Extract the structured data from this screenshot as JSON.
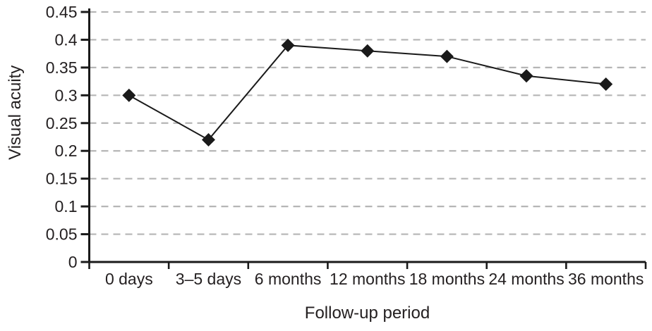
{
  "figure": {
    "background": "#ffffff"
  },
  "chart_data": {
    "type": "line",
    "title": "",
    "xlabel": "Follow-up period",
    "ylabel": "Visual acuity",
    "categories": [
      "0 days",
      "3–5 days",
      "6 months",
      "12 months",
      "18 months",
      "24 months",
      "36 months"
    ],
    "values": [
      0.3,
      0.22,
      0.39,
      0.38,
      0.37,
      0.335,
      0.32
    ],
    "ylim": [
      0,
      0.45
    ],
    "y_ticks": [
      0,
      0.05,
      0.1,
      0.15,
      0.2,
      0.25,
      0.3,
      0.35,
      0.4,
      0.45
    ],
    "y_tick_labels": [
      "0",
      "0.05",
      "0.1",
      "0.15",
      "0.2",
      "0.25",
      "0.3",
      "0.35",
      "0.4",
      "0.45"
    ],
    "grid": "horizontal-dashed",
    "legend_position": "none",
    "marker": "diamond",
    "colors": {
      "line": "#1a1a1a",
      "marker": "#1a1a1a",
      "axis": "#1a1a1a",
      "grid": "#b5b5b5",
      "text": "#231f20"
    }
  }
}
